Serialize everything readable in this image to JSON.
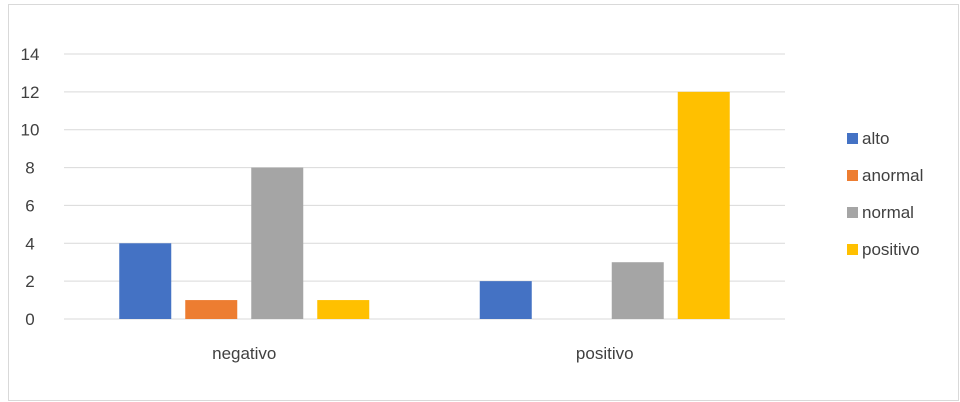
{
  "chart_data": {
    "type": "bar",
    "categories": [
      "negativo",
      "positivo"
    ],
    "series": [
      {
        "name": "alto",
        "values": [
          4,
          2
        ],
        "color": "#4472C4"
      },
      {
        "name": "anormal",
        "values": [
          1,
          0
        ],
        "color": "#ED7D31"
      },
      {
        "name": "normal",
        "values": [
          8,
          3
        ],
        "color": "#A5A5A5"
      },
      {
        "name": "positivo",
        "values": [
          1,
          12
        ],
        "color": "#FFC000"
      }
    ],
    "yticks": [
      "0",
      "2",
      "4",
      "6",
      "8",
      "10",
      "12",
      "14"
    ],
    "ylim": [
      0,
      14
    ],
    "grid": true,
    "legend": "right",
    "gridline_color": "#d9d9d9"
  }
}
